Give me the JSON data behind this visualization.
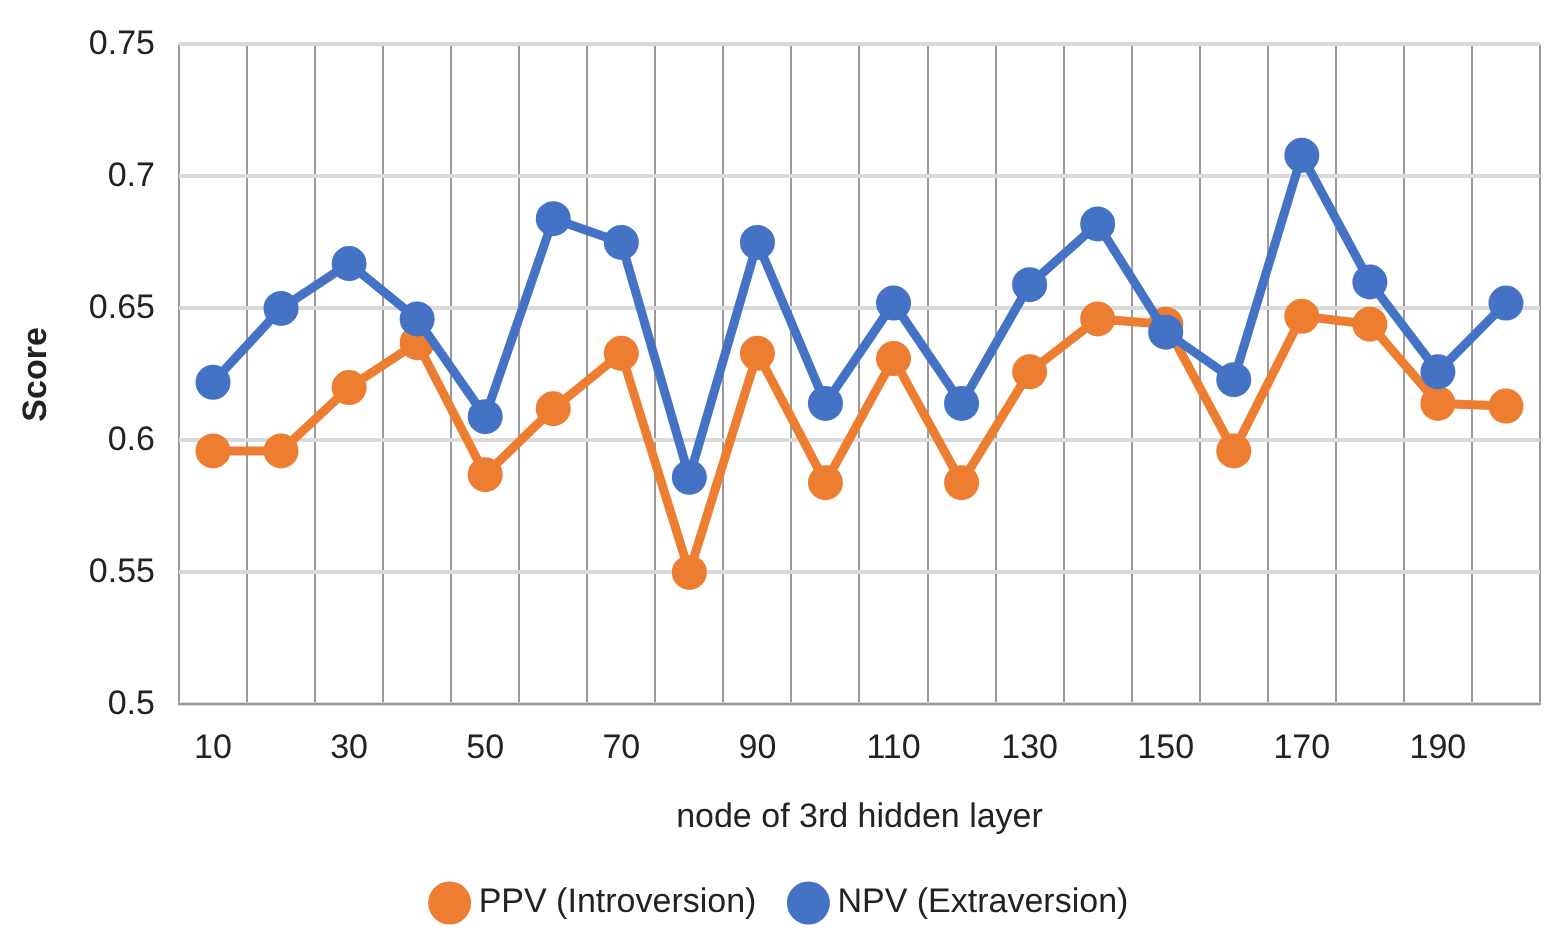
{
  "chart_data": {
    "type": "line",
    "xlabel": "node of 3rd hidden layer",
    "ylabel": "Score",
    "categories": [
      "10",
      null,
      "30",
      null,
      "50",
      null,
      "70",
      null,
      "90",
      null,
      "110",
      null,
      "130",
      null,
      "150",
      null,
      "170",
      null,
      "190",
      null
    ],
    "series": [
      {
        "name": "PPV (Introversion)",
        "color": "#ed7d31",
        "values": [
          0.596,
          0.596,
          0.62,
          0.637,
          0.587,
          0.612,
          0.633,
          0.55,
          0.633,
          0.584,
          0.631,
          0.584,
          0.626,
          0.646,
          0.644,
          0.596,
          0.647,
          0.644,
          0.614,
          0.613
        ]
      },
      {
        "name": "NPV (Extraversion)",
        "color": "#4472c4",
        "values": [
          0.622,
          0.65,
          0.667,
          0.646,
          0.609,
          0.684,
          0.675,
          0.586,
          0.675,
          0.614,
          0.652,
          0.614,
          0.659,
          0.682,
          0.641,
          0.623,
          0.708,
          0.66,
          0.626,
          0.652
        ]
      }
    ],
    "ylim": [
      0.5,
      0.75
    ],
    "yticks": [
      0.5,
      0.55,
      0.6,
      0.65,
      0.7,
      0.75
    ],
    "grid": true,
    "legend": "bottom",
    "marker": "circle",
    "line_style": "solid"
  }
}
